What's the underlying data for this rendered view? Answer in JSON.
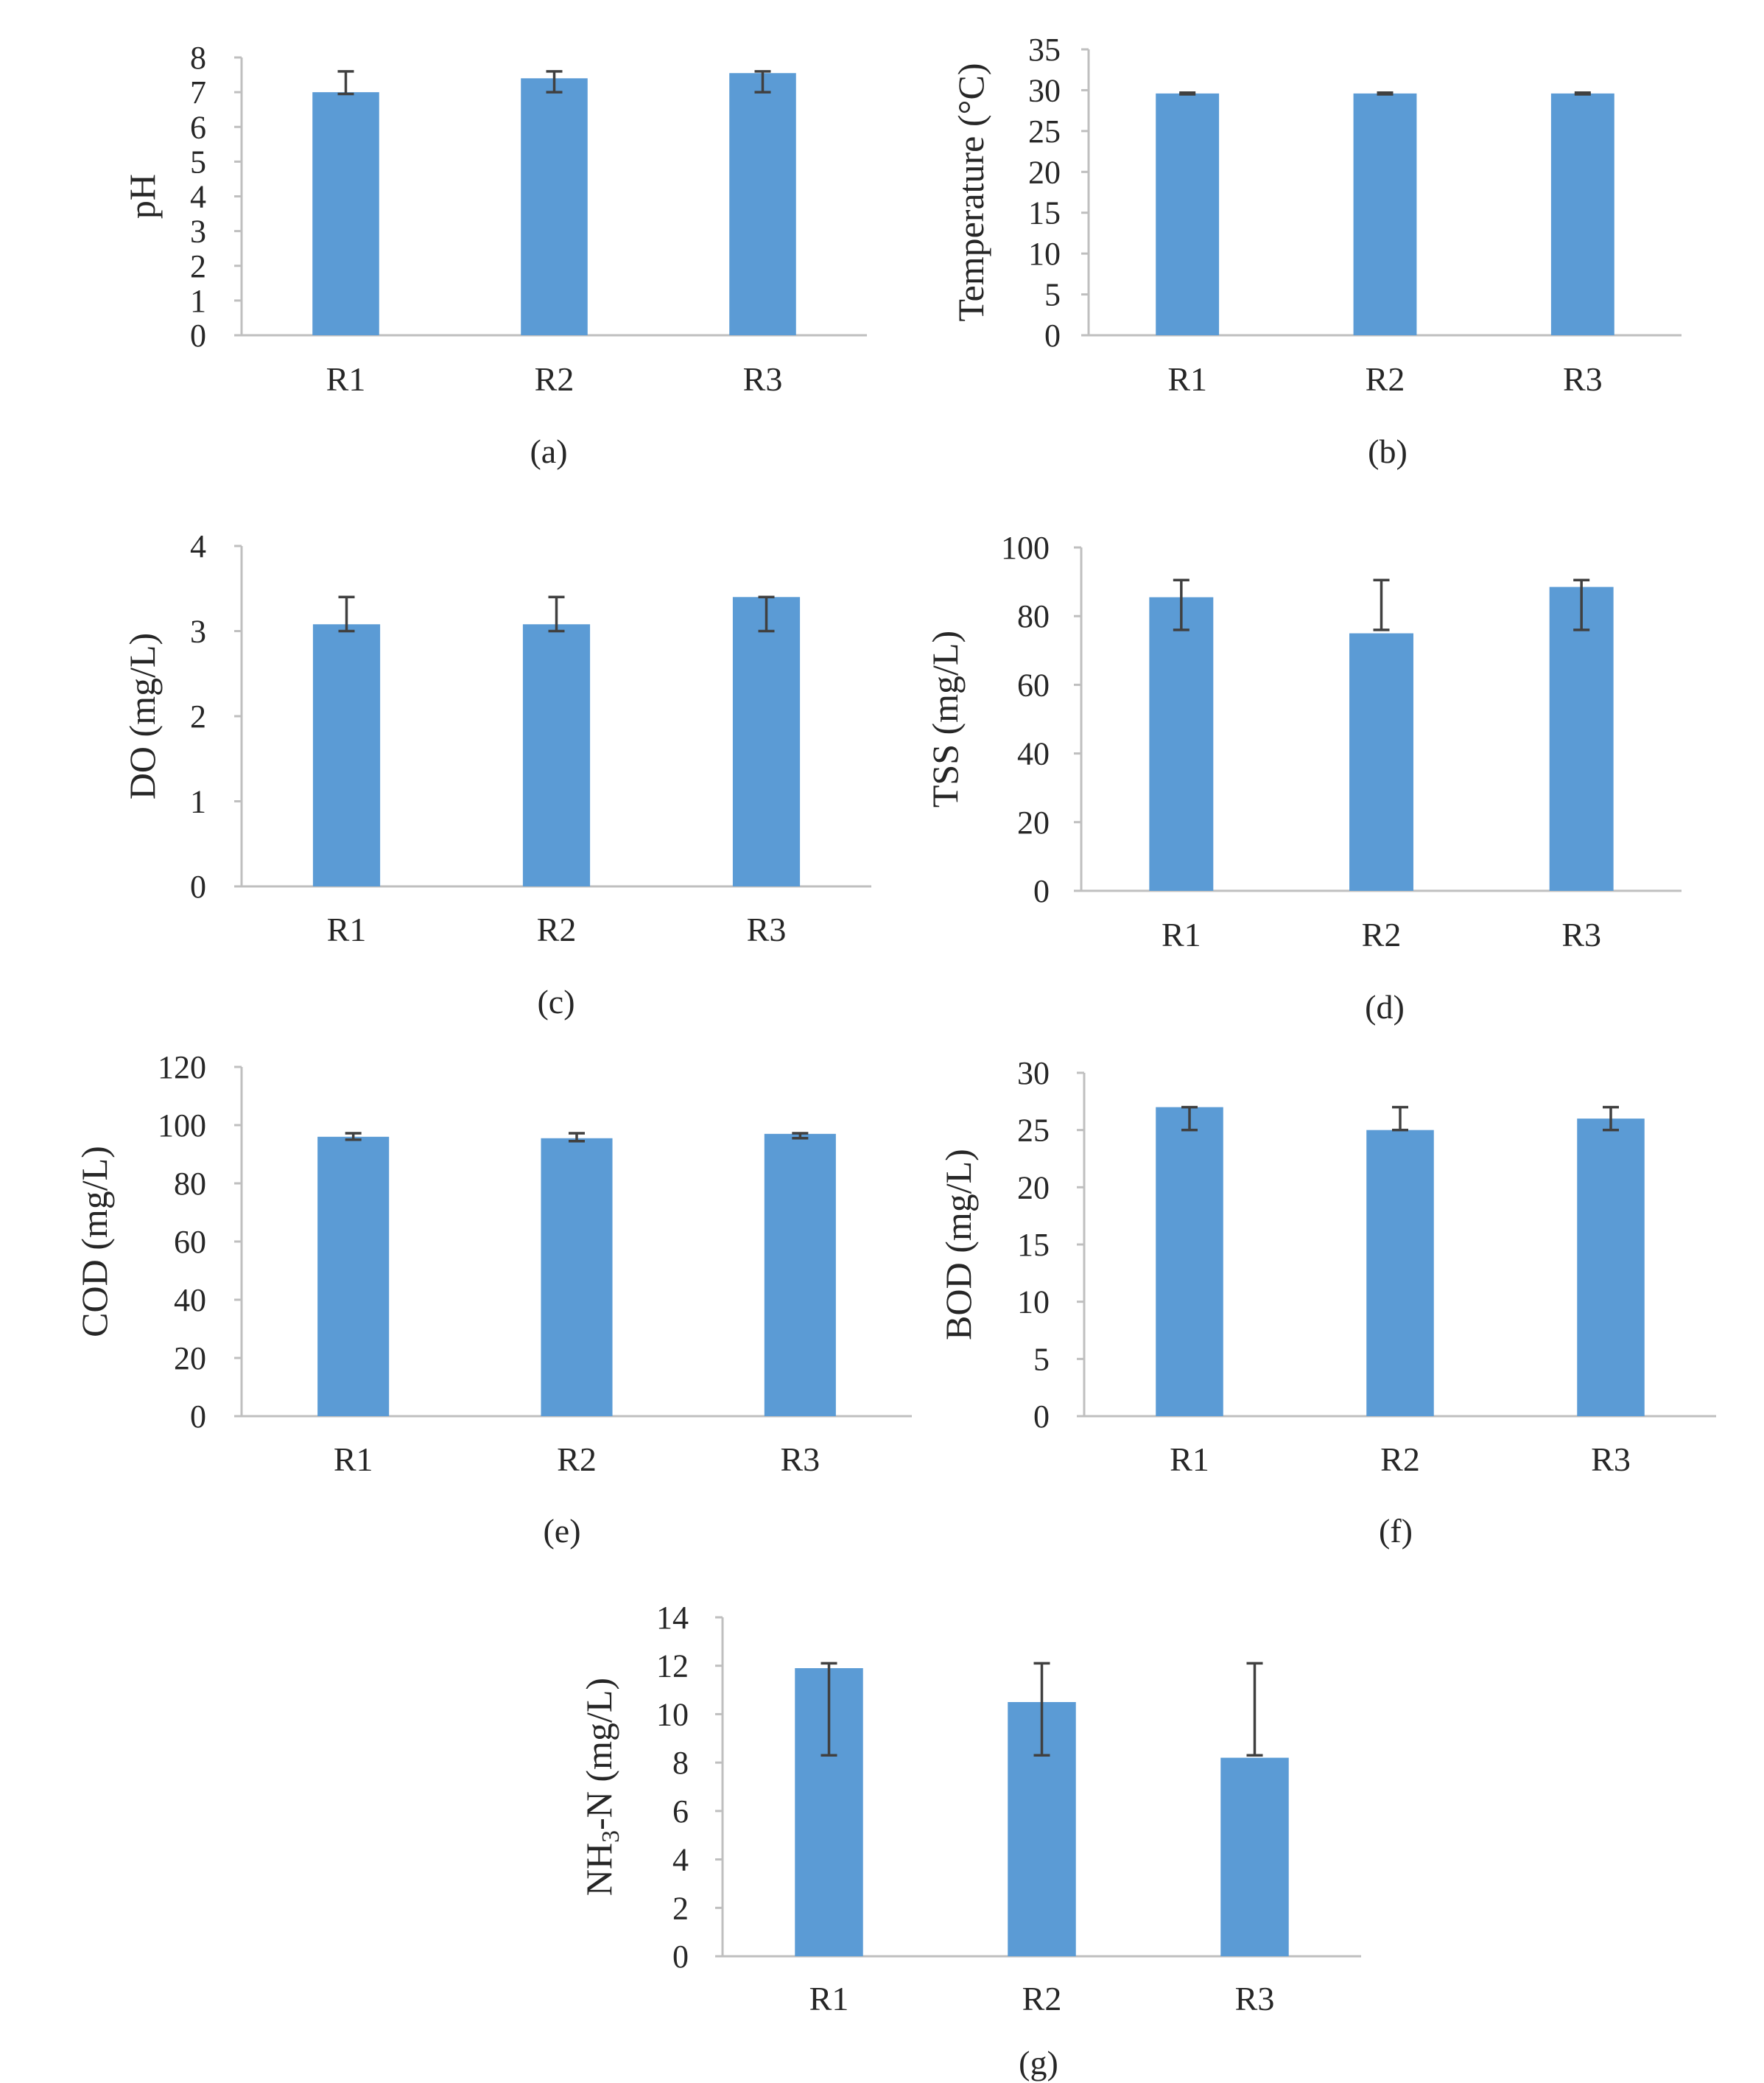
{
  "colors": {
    "bar": "#5b9bd5",
    "axis": "#bfbfbf",
    "error": "#404040"
  },
  "chart_data": [
    {
      "type": "bar",
      "panel_label": "(a)",
      "categories": [
        "R1",
        "R2",
        "R3"
      ],
      "values": [
        7.0,
        7.4,
        7.55
      ],
      "error_low": [
        6.95,
        7.0,
        7.0
      ],
      "error_high": [
        7.6,
        7.6,
        7.6
      ],
      "ylabel": "pH",
      "ylim": [
        0,
        8
      ],
      "yticks": [
        "0",
        "1",
        "2",
        "3",
        "4",
        "5",
        "6",
        "7",
        "8"
      ],
      "tick_values": [
        0,
        1,
        2,
        3,
        4,
        5,
        6,
        7,
        8
      ],
      "grid": false
    },
    {
      "type": "bar",
      "panel_label": "(b)",
      "categories": [
        "R1",
        "R2",
        "R3"
      ],
      "values": [
        29.6,
        29.6,
        29.6
      ],
      "error_low": [
        29.5,
        29.5,
        29.5
      ],
      "error_high": [
        29.7,
        29.7,
        29.7
      ],
      "ylabel": "Temperature (°C)",
      "ylim": [
        0,
        35
      ],
      "yticks": [
        "0",
        "5",
        "10",
        "15",
        "20",
        "25",
        "30",
        "35"
      ],
      "tick_values": [
        0,
        5,
        10,
        15,
        20,
        25,
        30,
        35
      ],
      "grid": false
    },
    {
      "type": "bar",
      "panel_label": "(c)",
      "categories": [
        "R1",
        "R2",
        "R3"
      ],
      "values": [
        3.08,
        3.08,
        3.4
      ],
      "error_low": [
        3.0,
        3.0,
        3.0
      ],
      "error_high": [
        3.4,
        3.4,
        3.4
      ],
      "ylabel": "DO (mg/L)",
      "ylim": [
        0,
        4
      ],
      "yticks": [
        "0",
        "1",
        "2",
        "3",
        "4"
      ],
      "tick_values": [
        0,
        1,
        2,
        3,
        4
      ],
      "grid": false
    },
    {
      "type": "bar",
      "panel_label": "(d)",
      "categories": [
        "R1",
        "R2",
        "R3"
      ],
      "values": [
        85.5,
        75,
        88.5
      ],
      "error_low": [
        76,
        76,
        76
      ],
      "error_high": [
        90.5,
        90.5,
        90.5
      ],
      "ylabel": "TSS (mg/L)",
      "ylim": [
        0,
        100
      ],
      "yticks": [
        "0",
        "20",
        "40",
        "60",
        "80",
        "100"
      ],
      "tick_values": [
        0,
        20,
        40,
        60,
        80,
        100
      ],
      "grid": false
    },
    {
      "type": "bar",
      "panel_label": "(e)",
      "categories": [
        "R1",
        "R2",
        "R3"
      ],
      "values": [
        96,
        95.5,
        97
      ],
      "error_low": [
        95,
        94.5,
        95.5
      ],
      "error_high": [
        97.2,
        97.2,
        97.2
      ],
      "ylabel": "COD (mg/L)",
      "ylim": [
        0,
        120
      ],
      "yticks": [
        "0",
        "20",
        "40",
        "60",
        "80",
        "100",
        "120"
      ],
      "tick_values": [
        0,
        20,
        40,
        60,
        80,
        100,
        120
      ],
      "grid": false
    },
    {
      "type": "bar",
      "panel_label": "(f)",
      "categories": [
        "R1",
        "R2",
        "R3"
      ],
      "values": [
        27,
        25,
        26
      ],
      "error_low": [
        25,
        25,
        25
      ],
      "error_high": [
        27,
        27,
        27
      ],
      "ylabel": "BOD (mg/L)",
      "ylim": [
        0,
        30
      ],
      "yticks": [
        "0",
        "5",
        "10",
        "15",
        "20",
        "25",
        "30"
      ],
      "tick_values": [
        0,
        5,
        10,
        15,
        20,
        25,
        30
      ],
      "grid": false
    },
    {
      "type": "bar",
      "panel_label": "(g)",
      "categories": [
        "R1",
        "R2",
        "R3"
      ],
      "values": [
        11.9,
        10.5,
        8.2
      ],
      "error_low": [
        8.3,
        8.3,
        8.3
      ],
      "error_high": [
        12.1,
        12.1,
        12.1
      ],
      "ylabel": "NH3-N (mg/L)",
      "ylim": [
        0,
        14
      ],
      "yticks": [
        "0",
        "2",
        "4",
        "6",
        "8",
        "10",
        "12",
        "14"
      ],
      "tick_values": [
        0,
        2,
        4,
        6,
        8,
        10,
        12,
        14
      ],
      "grid": false
    }
  ]
}
